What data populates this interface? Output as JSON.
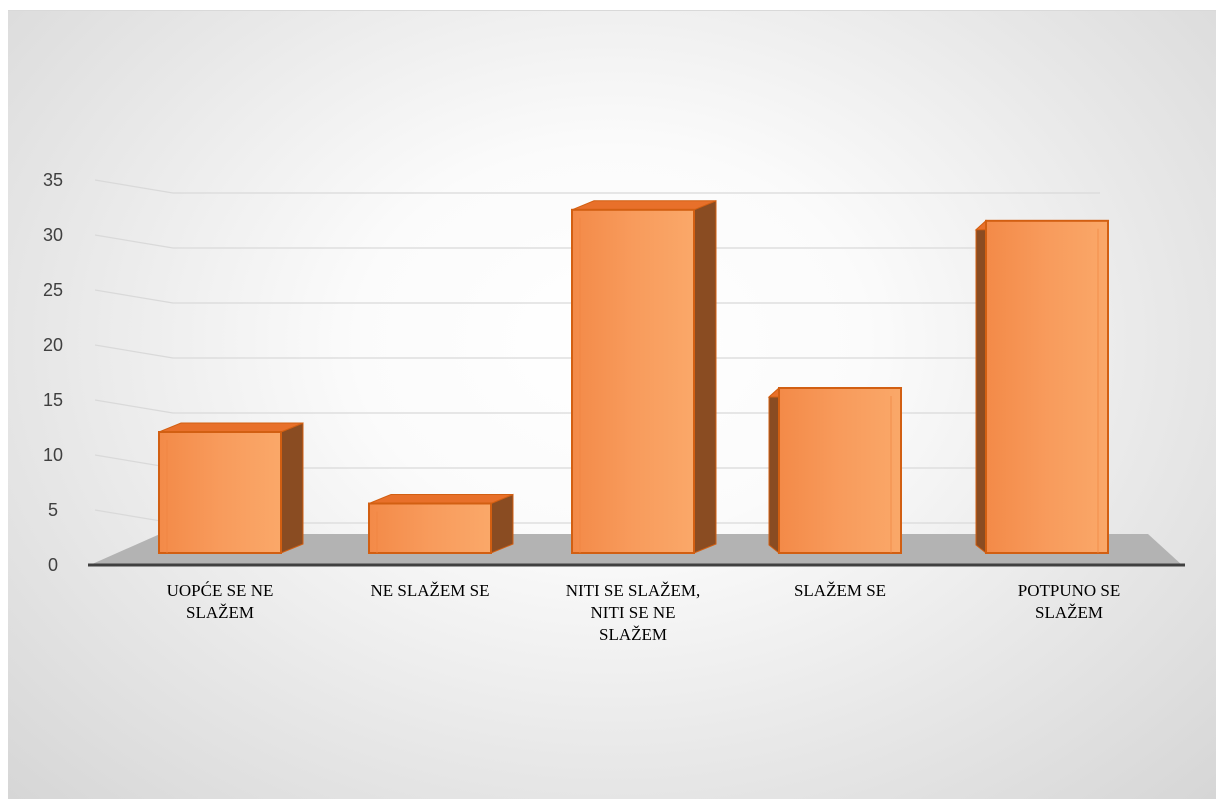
{
  "chart_data": {
    "type": "bar",
    "title": "",
    "xlabel": "",
    "ylabel": "",
    "categories": [
      [
        "UOPĆE SE NE",
        "SLAŽEM"
      ],
      [
        "NE SLAŽEM SE"
      ],
      [
        "NITI SE SLAŽEM,",
        "NITI SE NE",
        "SLAŽEM"
      ],
      [
        "SLAŽEM SE"
      ],
      [
        "POTPUNO SE",
        "SLAŽEM"
      ]
    ],
    "values": [
      11,
      4.5,
      31.2,
      15,
      30.2
    ],
    "ylim": [
      0,
      35
    ],
    "yticks": [
      0,
      5,
      10,
      15,
      20,
      25,
      30,
      35
    ],
    "grid": true,
    "style": "3d",
    "colors": {
      "bar_front": "#f79b5e",
      "bar_edge": "#d25f12",
      "bar_side": "#8a4c22",
      "bar_top": "#e8702a",
      "floor": "#b3b3b3",
      "axis": "#404040",
      "grid": "#d9d9d9"
    }
  }
}
